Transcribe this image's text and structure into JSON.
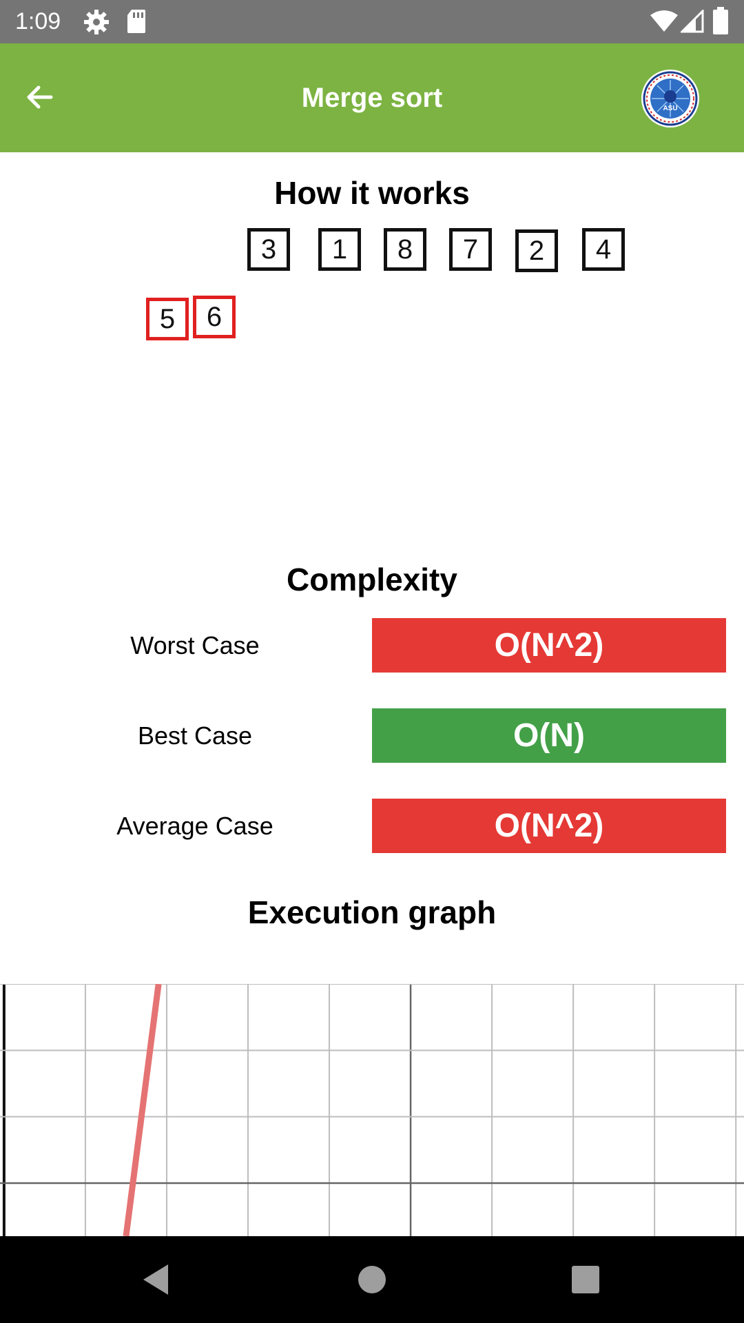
{
  "status_bar": {
    "time": "1:09",
    "icons": [
      "settings-gear-icon",
      "sd-card-icon",
      "wifi-icon",
      "cell-signal-icon",
      "battery-icon"
    ]
  },
  "app_bar": {
    "title": "Merge sort",
    "back_icon": "arrow-left-icon",
    "logo_text": "ASU",
    "color": "#7cb342"
  },
  "how_it_works": {
    "title": "How it works",
    "array": [
      "3",
      "1",
      "8",
      "7",
      "2",
      "4"
    ],
    "merged": [
      "5",
      "6"
    ]
  },
  "complexity": {
    "title": "Complexity",
    "cases": [
      {
        "label": "Worst Case",
        "value": "O(N^2)",
        "status": "bad"
      },
      {
        "label": "Best Case",
        "value": "O(N)",
        "status": "good"
      },
      {
        "label": "Average Case",
        "value": "O(N^2)",
        "status": "bad"
      }
    ],
    "colors": {
      "bad": "#e53935",
      "good": "#43a047"
    }
  },
  "execution_graph": {
    "title": "Execution graph"
  },
  "chart_data": {
    "type": "line",
    "title": "",
    "xlabel": "",
    "ylabel": "",
    "grid": true,
    "series": [
      {
        "color": "#e57373",
        "x": [
          1.5,
          1.9
        ],
        "y": [
          -0.8,
          3
        ]
      }
    ],
    "xlim": [
      -0.05,
      9.1
    ],
    "ylim": [
      -0.8,
      3.0
    ]
  },
  "nav_bar": {
    "buttons": [
      "back-triangle-icon",
      "home-circle-icon",
      "recents-square-icon"
    ]
  }
}
